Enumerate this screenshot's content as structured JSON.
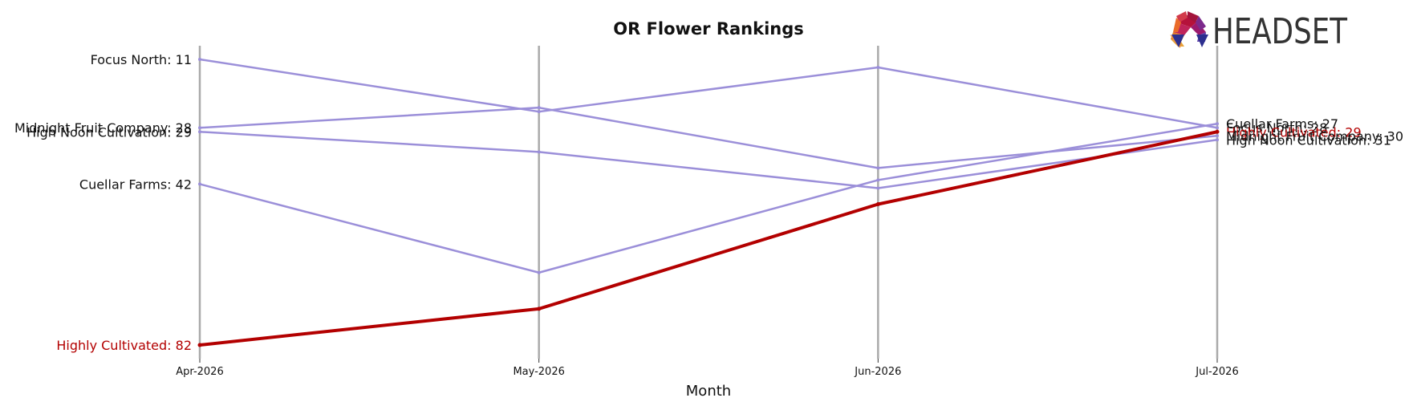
{
  "chart_data": {
    "type": "line",
    "title": "OR Flower Rankings",
    "xlabel": "Month",
    "ylabel": "",
    "x": [
      "Apr-2026",
      "May-2026",
      "Jun-2026",
      "Jul-2026"
    ],
    "y_inverted": true,
    "ylim": [
      87,
      6
    ],
    "grid": false,
    "legend": "none",
    "series": [
      {
        "name": "Focus North",
        "values": [
          11,
          24,
          13,
          28
        ],
        "color": "#9b8fd9"
      },
      {
        "name": "Midnight Fruit Company",
        "values": [
          28,
          23,
          38,
          30
        ],
        "color": "#9b8fd9"
      },
      {
        "name": "High Noon Cultivation",
        "values": [
          29,
          34,
          43,
          31
        ],
        "color": "#9b8fd9"
      },
      {
        "name": "Cuellar Farms",
        "values": [
          42,
          64,
          41,
          27
        ],
        "color": "#9b8fd9"
      },
      {
        "name": "Highly Cultivated",
        "values": [
          82,
          73,
          47,
          29
        ],
        "color": "#b30000"
      }
    ],
    "start_labels": [
      {
        "series": "Focus North",
        "text": "Focus North: 11"
      },
      {
        "series": "Midnight Fruit Company",
        "text": "Midnight Fruit Company: 28"
      },
      {
        "series": "High Noon Cultivation",
        "text": "High Noon Cultivation: 29"
      },
      {
        "series": "Cuellar Farms",
        "text": "Cuellar Farms: 42"
      },
      {
        "series": "Highly Cultivated",
        "text": "Highly Cultivated: 82"
      }
    ],
    "end_labels": [
      {
        "series": "Cuellar Farms",
        "text": "Cuellar Farms: 27"
      },
      {
        "series": "Focus North",
        "text": "Focus North: 28"
      },
      {
        "series": "Highly Cultivated",
        "text": "Highly Cultivated: 29"
      },
      {
        "series": "Midnight Fruit Company",
        "text": "Midnight Fruit Company: 30"
      },
      {
        "series": "High Noon Cultivation",
        "text": "High Noon Cultivation: 31"
      }
    ],
    "highlight_color": "#b30000",
    "label_color": "#111111",
    "line_color": "#9b8fd9",
    "vline_color": "#aaaaaa"
  },
  "logo": {
    "text": "HEADSET"
  }
}
